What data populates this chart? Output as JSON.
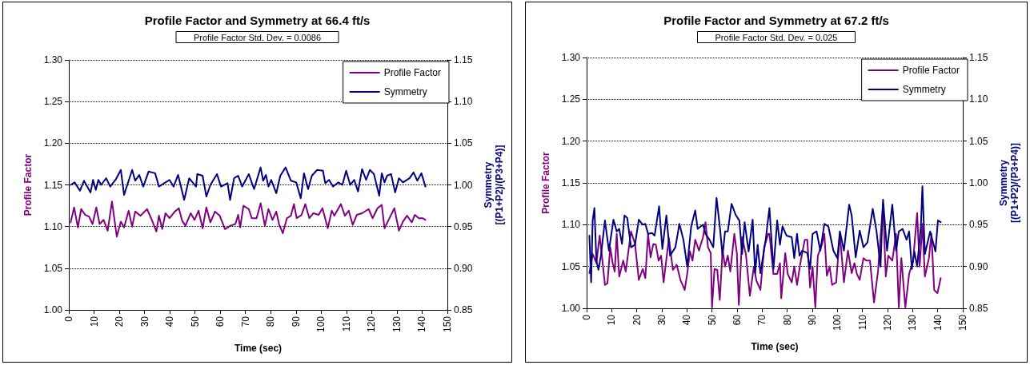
{
  "chart_data": [
    {
      "type": "line",
      "title": "Profile Factor and Symmetry at 66.4 ft/s",
      "annotations": [
        "Profile Factor Std. Dev. = 0.0086"
      ],
      "xlabel": "Time (sec)",
      "ylabel": "Profile Factor",
      "y2label": "Symmetry\n[(P1+P2)/(P3+P4)]",
      "xlim": [
        0,
        150
      ],
      "xticks": [
        0,
        10,
        20,
        30,
        40,
        50,
        60,
        70,
        80,
        90,
        100,
        110,
        120,
        130,
        140,
        150
      ],
      "ylim": [
        1,
        1.3
      ],
      "yticks": [
        {
          "value": 1,
          "label": "1.00"
        },
        {
          "value": 1.05,
          "label": "1.05"
        },
        {
          "value": 1.1,
          "label": "1.10"
        },
        {
          "value": 1.15,
          "label": "1.15"
        },
        {
          "value": 1.2,
          "label": "1.20"
        },
        {
          "value": 1.25,
          "label": "1.25"
        },
        {
          "value": 1.3,
          "label": "1.30"
        }
      ],
      "y2lim": [
        0.85,
        1.15
      ],
      "y2ticks": [
        {
          "value": 0.85,
          "label": "0.85"
        },
        {
          "value": 0.9,
          "label": "0.90"
        },
        {
          "value": 0.95,
          "label": "0.95"
        },
        {
          "value": 1,
          "label": "1.00"
        },
        {
          "value": 1.05,
          "label": "1.05"
        },
        {
          "value": 1.1,
          "label": "1.10"
        },
        {
          "value": 1.15,
          "label": "1.15"
        }
      ],
      "grid": "y",
      "legend": "top right",
      "marker": "none",
      "line_style": "solid",
      "series": [
        {
          "name": "Profile Factor",
          "color": "#800080",
          "x": [
            0.7,
            2.1,
            3.6,
            4.9,
            6.5,
            8.0,
            9.4,
            10.9,
            12.2,
            13.8,
            15.4,
            17.1,
            19.0,
            20.6,
            21.9,
            23.7,
            25.1,
            26.3,
            28.4,
            31.0,
            32.6,
            34.7,
            35.7,
            37.0,
            38.3,
            39.9,
            42.0,
            43.6,
            44.9,
            46.2,
            48.3,
            49.8,
            51.4,
            53.0,
            54.5,
            56.1,
            57.9,
            59.8,
            61.9,
            64.0,
            66.0,
            67.1,
            67.9,
            69.2,
            71.3,
            72.5,
            74.4,
            76.0,
            77.7,
            79.1,
            80.7,
            82.2,
            83.3,
            84.8,
            86.4,
            88.0,
            89.2,
            90.3,
            92.2,
            93.7,
            95.3,
            96.9,
            99.0,
            100.5,
            102.6,
            104.2,
            105.2,
            107.8,
            109.4,
            110.9,
            112.5,
            114.1,
            116.2,
            118.8,
            120.4,
            122.3,
            124.0,
            125.1,
            126.7,
            129.0,
            130.8,
            132.4,
            134.0,
            135.9,
            137.1,
            138.7,
            140.3,
            141.3
          ],
          "values": [
            1.105,
            1.123,
            1.099,
            1.121,
            1.114,
            1.112,
            1.103,
            1.123,
            1.103,
            1.108,
            1.095,
            1.13,
            1.088,
            1.106,
            1.099,
            1.119,
            1.1,
            1.118,
            1.113,
            1.121,
            1.11,
            1.094,
            1.113,
            1.097,
            1.116,
            1.11,
            1.118,
            1.122,
            1.107,
            1.101,
            1.116,
            1.108,
            1.119,
            1.098,
            1.123,
            1.105,
            1.118,
            1.113,
            1.097,
            1.101,
            1.103,
            1.114,
            1.099,
            1.125,
            1.121,
            1.11,
            1.11,
            1.128,
            1.101,
            1.121,
            1.108,
            1.118,
            1.103,
            1.092,
            1.11,
            1.113,
            1.127,
            1.11,
            1.114,
            1.127,
            1.11,
            1.116,
            1.114,
            1.122,
            1.098,
            1.119,
            1.113,
            1.127,
            1.113,
            1.119,
            1.102,
            1.114,
            1.116,
            1.121,
            1.11,
            1.122,
            1.126,
            1.098,
            1.108,
            1.122,
            1.095,
            1.106,
            1.113,
            1.105,
            1.114,
            1.11,
            1.11,
            1.108
          ]
        },
        {
          "name": "Symmetry",
          "color": "#000080",
          "axis": "y2",
          "x": [
            0.7,
            2.3,
            4.4,
            6.0,
            8.6,
            9.6,
            10.7,
            11.7,
            12.8,
            14.8,
            16.4,
            18.5,
            20.6,
            21.9,
            23.7,
            25.1,
            26.3,
            27.9,
            29.5,
            31.6,
            34.2,
            35.7,
            37.8,
            39.9,
            41.5,
            43.3,
            45.7,
            47.7,
            50.4,
            50.9,
            53.0,
            54.5,
            56.1,
            58.7,
            60.3,
            62.9,
            63.9,
            65.5,
            67.1,
            68.7,
            71.3,
            73.4,
            76.0,
            77.0,
            78.1,
            79.1,
            80.2,
            82.2,
            83.8,
            85.9,
            88.0,
            90.1,
            91.9,
            93.2,
            94.8,
            96.3,
            98.4,
            100.7,
            101.6,
            103.1,
            104.7,
            106.8,
            108.4,
            109.9,
            111.5,
            113.1,
            114.6,
            116.2,
            117.8,
            119.3,
            120.9,
            123.0,
            124.0,
            125.1,
            126.1,
            127.7,
            129.3,
            130.8,
            132.4,
            135.0,
            136.6,
            138.1,
            139.7,
            141.3
          ],
          "values": [
            1.0,
            1.003,
            0.993,
            1.005,
            0.991,
            1.006,
            0.994,
            1.006,
            1.0,
            1.008,
            0.998,
            1.006,
            1.018,
            0.988,
            1.005,
            1.018,
            1.005,
            1.012,
            0.998,
            1.016,
            1.014,
            0.998,
            1.002,
            1.006,
            0.998,
            1.012,
            0.982,
            1.008,
            0.998,
            1.013,
            1.011,
            0.986,
            1.0,
            1.013,
            0.998,
            1.002,
            0.982,
            1.008,
            1.011,
            0.998,
            1.013,
            0.995,
            1.021,
            1.005,
            1.012,
            0.998,
            1.006,
            0.99,
            1.011,
            1.021,
            1.005,
            1.003,
            0.984,
            1.014,
            0.995,
            1.011,
            1.018,
            1.017,
            1.002,
            1.006,
            0.998,
            1.003,
            1.0,
            1.017,
            1.0,
            1.006,
            0.992,
            1.019,
            1.006,
            1.018,
            1.013,
            0.987,
            1.014,
            1.003,
            1.011,
            1.013,
            0.991,
            1.008,
            1.003,
            1.008,
            1.015,
            1.005,
            1.014,
            0.998
          ]
        }
      ]
    },
    {
      "type": "line",
      "title": "Profile Factor and Symmetry at 67.2 ft/s",
      "annotations": [
        "Profile Factor Std. Dev. = 0.025"
      ],
      "xlabel": "Time (sec)",
      "ylabel": "Profile Factor",
      "y2label": "Symmetry\n[(P1+P2)/(P3+P4)]",
      "xlim": [
        0,
        150
      ],
      "xticks": [
        0,
        10,
        20,
        30,
        40,
        50,
        60,
        70,
        80,
        90,
        100,
        110,
        120,
        130,
        140,
        150
      ],
      "ylim": [
        1,
        1.3
      ],
      "yticks": [
        {
          "value": 1,
          "label": "1.00"
        },
        {
          "value": 1.05,
          "label": "1.05"
        },
        {
          "value": 1.1,
          "label": "1.10"
        },
        {
          "value": 1.15,
          "label": "1.15"
        },
        {
          "value": 1.2,
          "label": "1.20"
        },
        {
          "value": 1.25,
          "label": "1.25"
        },
        {
          "value": 1.3,
          "label": "1.30"
        }
      ],
      "y2lim": [
        0.85,
        1.15
      ],
      "y2ticks": [
        {
          "value": 0.85,
          "label": "0.85"
        },
        {
          "value": 0.9,
          "label": "0.90"
        },
        {
          "value": 0.95,
          "label": "0.95"
        },
        {
          "value": 1,
          "label": "1.00"
        },
        {
          "value": 1.05,
          "label": "1.05"
        },
        {
          "value": 1.1,
          "label": "1.10"
        },
        {
          "value": 1.15,
          "label": "1.15"
        }
      ],
      "grid": "y",
      "legend": "top right",
      "marker": "none",
      "line_style": "solid",
      "series": [
        {
          "name": "Profile Factor",
          "color": "#800080",
          "x": [
            1.1,
            2.4,
            3.1,
            3.9,
            5.2,
            6.3,
            7.3,
            8.3,
            9.4,
            10.4,
            11.2,
            12.0,
            13.0,
            14.6,
            15.6,
            17.7,
            19.3,
            20.8,
            22.4,
            23.4,
            24.5,
            25.5,
            26.6,
            27.6,
            28.7,
            29.7,
            30.7,
            32.8,
            34.4,
            35.9,
            37.5,
            39.1,
            40.1,
            41.2,
            42.2,
            43.3,
            44.8,
            46.4,
            47.4,
            48.4,
            49.5,
            50.0,
            51.0,
            52.1,
            53.1,
            54.2,
            55.2,
            56.3,
            57.3,
            58.9,
            59.9,
            60.7,
            62.0,
            63.5,
            65.1,
            66.7,
            67.7,
            69.3,
            70.8,
            72.4,
            72.9,
            74.5,
            76.0,
            77.1,
            77.6,
            79.2,
            80.2,
            81.8,
            82.8,
            83.9,
            85.4,
            87.0,
            88.0,
            89.1,
            90.1,
            91.2,
            92.2,
            93.8,
            94.8,
            95.8,
            96.9,
            97.9,
            99.5,
            101.0,
            102.6,
            104.2,
            105.7,
            106.8,
            107.8,
            108.9,
            110.4,
            111.5,
            113.0,
            114.6,
            116.2,
            117.2,
            118.2,
            119.3,
            120.3,
            121.9,
            123.4,
            124.5,
            125.5,
            127.1,
            128.6,
            130.2,
            131.8,
            132.8,
            133.9,
            134.9,
            136.5,
            137.5,
            138.6,
            139.9,
            141.2
          ],
          "values": [
            1.042,
            1.065,
            1.06,
            1.054,
            1.087,
            1.057,
            1.028,
            1.03,
            1.073,
            1.054,
            1.044,
            1.089,
            1.038,
            1.057,
            1.044,
            1.092,
            1.077,
            1.034,
            1.047,
            1.036,
            1.089,
            1.061,
            1.077,
            1.076,
            1.057,
            1.063,
            1.031,
            1.084,
            1.046,
            1.052,
            1.033,
            1.022,
            1.041,
            1.068,
            1.057,
            1.082,
            1.069,
            1.085,
            1.103,
            1.073,
            1.066,
            1.001,
            1.047,
            1.046,
            1.01,
            1.069,
            1.05,
            1.063,
            1.044,
            1.089,
            1.066,
            1.004,
            1.085,
            1.065,
            1.015,
            1.05,
            1.033,
            1.022,
            1.073,
            1.089,
            1.089,
            1.041,
            1.041,
            1.054,
            1.012,
            1.066,
            1.041,
            1.031,
            1.05,
            1.028,
            1.057,
            1.082,
            1.082,
            1.025,
            1.05,
            1.001,
            1.063,
            1.076,
            1.089,
            1.039,
            1.05,
            1.028,
            1.031,
            1.089,
            1.031,
            1.069,
            1.042,
            1.054,
            1.041,
            1.034,
            1.06,
            1.057,
            1.057,
            1.007,
            1.044,
            1.085,
            1.125,
            1.038,
            1.063,
            1.057,
            1.089,
            1.001,
            1.06,
            1.001,
            1.041,
            1.057,
            1.114,
            1.05,
            1.101,
            1.038,
            1.06,
            1.089,
            1.022,
            1.018,
            1.036
          ]
        },
        {
          "name": "Symmetry",
          "color": "#000080",
          "axis": "y2",
          "x": [
            1.1,
            1.8,
            2.4,
            3.1,
            3.9,
            4.7,
            5.7,
            7.3,
            8.9,
            10.7,
            12.0,
            13.0,
            14.1,
            15.1,
            16.2,
            17.7,
            19.3,
            20.8,
            22.4,
            23.4,
            24.5,
            26.1,
            27.1,
            28.9,
            30.2,
            31.8,
            33.3,
            35.4,
            37.0,
            38.6,
            40.1,
            41.7,
            43.3,
            44.3,
            46.4,
            47.4,
            49.0,
            50.5,
            51.8,
            53.1,
            54.2,
            55.2,
            56.3,
            57.8,
            59.4,
            60.9,
            62.0,
            63.0,
            64.6,
            66.2,
            67.2,
            68.2,
            69.3,
            71.4,
            72.9,
            74.5,
            76.0,
            77.1,
            78.1,
            79.7,
            81.8,
            82.8,
            83.9,
            84.9,
            86.0,
            88.0,
            89.1,
            90.1,
            91.7,
            93.2,
            94.8,
            96.4,
            98.4,
            100.0,
            101.0,
            102.6,
            104.7,
            105.7,
            107.3,
            108.9,
            110.4,
            112.0,
            114.1,
            115.6,
            117.2,
            118.2,
            119.8,
            121.9,
            123.4,
            124.5,
            126.0,
            127.6,
            128.6,
            129.7,
            130.7,
            131.8,
            133.3,
            133.9,
            134.9,
            137.0,
            139.1,
            140.1,
            141.2
          ],
          "values": [
            0.937,
            0.881,
            0.955,
            0.97,
            0.907,
            0.896,
            0.913,
            0.955,
            0.919,
            0.956,
            0.942,
            0.945,
            0.927,
            0.961,
            0.958,
            0.923,
            0.926,
            0.956,
            0.95,
            0.951,
            0.939,
            0.94,
            0.937,
            0.972,
            0.921,
            0.961,
            0.913,
            0.923,
            0.951,
            0.932,
            0.9,
            0.948,
            0.967,
            0.945,
            0.95,
            0.939,
            0.932,
            0.923,
            0.982,
            0.948,
            0.913,
            0.942,
            0.942,
            0.975,
            0.962,
            0.955,
            0.915,
            0.953,
            0.918,
            0.956,
            0.892,
            0.926,
            0.892,
            0.932,
            0.97,
            0.897,
            0.955,
            0.926,
            0.948,
            0.937,
            0.935,
            0.91,
            0.939,
            0.913,
            0.919,
            0.916,
            0.897,
            0.939,
            0.942,
            0.919,
            0.951,
            0.948,
            0.919,
            0.91,
            0.942,
            0.919,
            0.974,
            0.961,
            0.911,
            0.943,
            0.923,
            0.929,
            0.969,
            0.942,
            0.9,
            0.98,
            0.919,
            0.974,
            0.919,
            0.942,
            0.945,
            0.932,
            0.942,
            0.897,
            0.918,
            0.9,
            0.948,
            0.996,
            0.915,
            0.942,
            0.918,
            0.955,
            0.953
          ]
        }
      ]
    }
  ]
}
